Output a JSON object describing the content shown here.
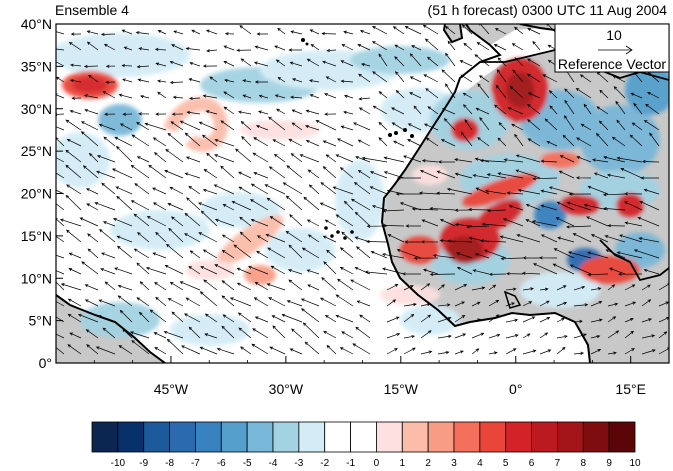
{
  "title_left": "Ensemble 4",
  "title_right": "(51 h forecast) 0300 UTC 11 Aug 2004",
  "map": {
    "lon_range": [
      -60,
      20
    ],
    "lat_range": [
      0,
      40
    ],
    "lat_ticks": [
      "0°",
      "5°N",
      "10°N",
      "15°N",
      "20°N",
      "25°N",
      "30°N",
      "35°N",
      "40°N"
    ],
    "lon_ticks": [
      "45°W",
      "30°W",
      "15°W",
      "0°",
      "15°E"
    ],
    "land_fill": "#c8c8c8",
    "coast_color": "#000000"
  },
  "reference_vector": {
    "magnitude": "10",
    "label": "Reference Vector"
  },
  "colorbar": {
    "labels": [
      "-10",
      "-9",
      "-8",
      "-7",
      "-6",
      "-5",
      "-4",
      "-3",
      "-2",
      "-1",
      "0",
      "1",
      "2",
      "3",
      "4",
      "5",
      "6",
      "7",
      "8",
      "9",
      "10"
    ],
    "colors": [
      "#0b2751",
      "#08306b",
      "#1c5a9c",
      "#2a6bb0",
      "#3982c0",
      "#559fcd",
      "#79b7d8",
      "#a3d2e2",
      "#d3ecf6",
      "#ffffff",
      "#ffffff",
      "#fde0df",
      "#fbbcaa",
      "#f89c85",
      "#f4705c",
      "#ea4539",
      "#d32228",
      "#bb1b20",
      "#a31519",
      "#7f0d10",
      "#5c0508"
    ]
  }
}
